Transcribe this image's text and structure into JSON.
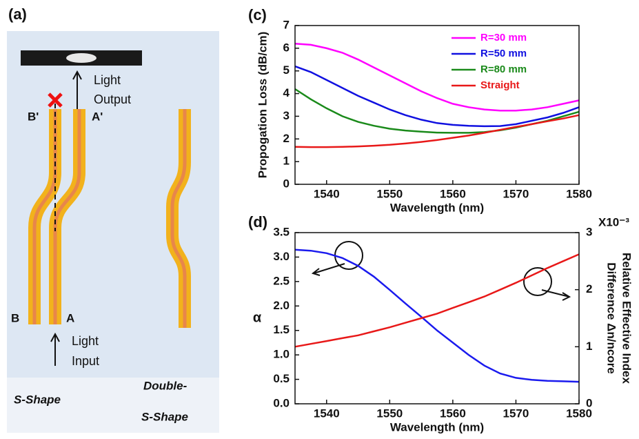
{
  "diagram": {
    "panel_label": "(a)",
    "light_output": [
      "Light",
      "Output"
    ],
    "light_input": [
      "Light",
      "Input"
    ],
    "port_labels": [
      "B'",
      "A'",
      "B",
      "A"
    ],
    "shape_labels": [
      "S-Shape"
    ],
    "double_label": [
      "Double-",
      "S-Shape"
    ]
  },
  "chart_data": [
    {
      "type": "line",
      "title": "(c)",
      "x_label": "Wavelength (nm)",
      "y_label": "Propogation Loss (dB/cm)",
      "x": [
        1535,
        1537.5,
        1540,
        1542.5,
        1545,
        1547.5,
        1550,
        1552.5,
        1555,
        1557.5,
        1560,
        1562.5,
        1565,
        1567.5,
        1570,
        1572.5,
        1575,
        1577.5,
        1580
      ],
      "xlim": [
        1535,
        1580
      ],
      "xticks": [
        1540,
        1550,
        1560,
        1570,
        1580
      ],
      "ylim": [
        0,
        7
      ],
      "yticks": [
        0,
        1,
        2,
        3,
        4,
        5,
        6,
        7
      ],
      "legend": "upper right",
      "series": [
        {
          "name": "R=30 mm",
          "color": "#ff00ff",
          "values": [
            6.2,
            6.15,
            6.0,
            5.8,
            5.5,
            5.15,
            4.8,
            4.45,
            4.1,
            3.8,
            3.55,
            3.4,
            3.3,
            3.25,
            3.25,
            3.3,
            3.4,
            3.55,
            3.7
          ]
        },
        {
          "name": "R=50 mm",
          "color": "#1010e0",
          "values": [
            5.2,
            4.95,
            4.6,
            4.25,
            3.9,
            3.6,
            3.3,
            3.05,
            2.85,
            2.7,
            2.62,
            2.58,
            2.56,
            2.57,
            2.65,
            2.8,
            2.95,
            3.15,
            3.4
          ]
        },
        {
          "name": "R=80 mm",
          "color": "#1a8a1a",
          "values": [
            4.2,
            3.75,
            3.35,
            3.0,
            2.75,
            2.58,
            2.45,
            2.37,
            2.32,
            2.28,
            2.27,
            2.27,
            2.3,
            2.38,
            2.5,
            2.65,
            2.8,
            3.0,
            3.2
          ]
        },
        {
          "name": "Straight",
          "color": "#e81818",
          "values": [
            1.65,
            1.64,
            1.64,
            1.65,
            1.67,
            1.7,
            1.74,
            1.8,
            1.87,
            1.95,
            2.05,
            2.15,
            2.27,
            2.4,
            2.53,
            2.65,
            2.78,
            2.9,
            3.05
          ]
        }
      ]
    },
    {
      "type": "line",
      "title": "(d)",
      "x_label": "Wavelength (nm)",
      "y_label": "α",
      "y2_label": [
        "Relative Effective Index",
        "Difference Δn/ncore"
      ],
      "y2_annotation": "X10⁻³",
      "x": [
        1535,
        1537.5,
        1540,
        1542.5,
        1545,
        1547.5,
        1550,
        1552.5,
        1555,
        1557.5,
        1560,
        1562.5,
        1565,
        1567.5,
        1570,
        1572.5,
        1575,
        1577.5,
        1580
      ],
      "xlim": [
        1535,
        1580
      ],
      "xticks": [
        1540,
        1550,
        1560,
        1570,
        1580
      ],
      "ylim": [
        0,
        3.5
      ],
      "yticks": [
        {
          "value": 0,
          "label": "0.0"
        },
        {
          "value": 0.5,
          "label": "0.5"
        },
        {
          "value": 1,
          "label": "1.0"
        },
        {
          "value": 1.5,
          "label": "1.5"
        },
        {
          "value": 2,
          "label": "2.0"
        },
        {
          "value": 2.5,
          "label": "2.5"
        },
        {
          "value": 3,
          "label": "3.0"
        },
        {
          "value": 3.5,
          "label": "3.5"
        }
      ],
      "y2lim": [
        0,
        3
      ],
      "y2ticks": [
        0,
        1,
        2,
        3
      ],
      "series": [
        {
          "color": "#1a1aee",
          "values": [
            3.15,
            3.13,
            3.08,
            2.98,
            2.82,
            2.6,
            2.33,
            2.05,
            1.78,
            1.5,
            1.25,
            1.0,
            0.78,
            0.62,
            0.53,
            0.49,
            0.47,
            0.46,
            0.45
          ]
        },
        {
          "color": "#e81818",
          "axis": "y2",
          "values": [
            1.0,
            1.05,
            1.1,
            1.15,
            1.2,
            1.27,
            1.34,
            1.42,
            1.5,
            1.58,
            1.68,
            1.78,
            1.88,
            2.0,
            2.12,
            2.25,
            2.38,
            2.5,
            2.62
          ]
        }
      ]
    }
  ]
}
